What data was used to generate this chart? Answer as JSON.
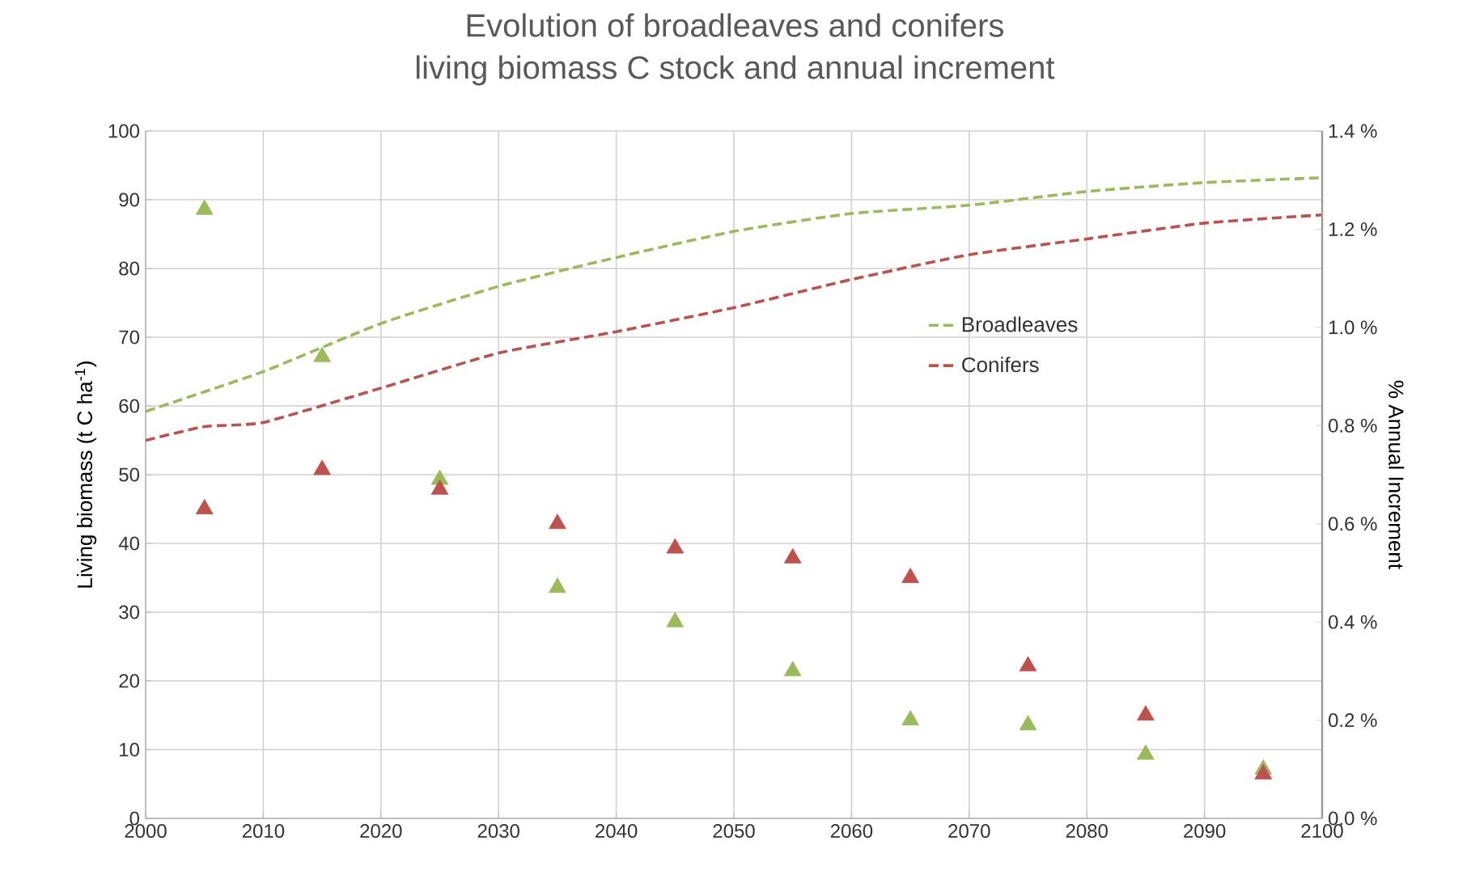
{
  "chart_data": {
    "type": "line",
    "title": "Evolution of broadleaves and conifers\nliving biomass C stock and annual increment",
    "ylabel": "Living biomass (t C ha$^{-1}$)",
    "y2label": "% Annual Increment",
    "xlim": [
      2000,
      2100
    ],
    "xticks": [
      2000,
      2010,
      2020,
      2030,
      2040,
      2050,
      2060,
      2070,
      2080,
      2090,
      2100
    ],
    "ylim": [
      0,
      100
    ],
    "yticks": [
      0,
      10,
      20,
      30,
      40,
      50,
      60,
      70,
      80,
      90,
      100
    ],
    "y2lim": [
      0,
      1.4
    ],
    "y2ticks": [
      {
        "value": 0,
        "label": "0.0 %"
      },
      {
        "value": 0.2,
        "label": "0.2 %"
      },
      {
        "value": 0.4,
        "label": "0.4 %"
      },
      {
        "value": 0.6,
        "label": "0.6 %"
      },
      {
        "value": 0.8,
        "label": "0.8 %"
      },
      {
        "value": 1.0,
        "label": "1.0 %"
      },
      {
        "value": 1.2,
        "label": "1.2 %"
      },
      {
        "value": 1.4,
        "label": "1.4 %"
      }
    ],
    "grid": true,
    "legend": "right",
    "line_style": "dashed",
    "series": [
      {
        "name": "Broadleaves",
        "color": "#9bbb59",
        "x": [
          2000,
          2010,
          2020,
          2030,
          2040,
          2050,
          2060,
          2070,
          2080,
          2090,
          2100
        ],
        "values": [
          59.2,
          65,
          72,
          77.4,
          81.6,
          85.4,
          88,
          89.2,
          91.2,
          92.5,
          93.2
        ]
      },
      {
        "name": "Conifers",
        "color": "#c0504d",
        "x": [
          2000,
          2005,
          2010,
          2020,
          2030,
          2040,
          2050,
          2060,
          2070,
          2080,
          2090,
          2100
        ],
        "values": [
          55,
          57,
          57.6,
          62.6,
          67.7,
          70.8,
          74.3,
          78.4,
          82,
          84.3,
          86.6,
          87.8
        ]
      },
      {
        "type": "scatter",
        "axis": "y2",
        "marker": "triangle",
        "color": "#9bbb59",
        "x": [
          2005,
          2015,
          2025,
          2035,
          2045,
          2055,
          2065,
          2075,
          2085,
          2095
        ],
        "values": [
          1.24,
          0.94,
          0.69,
          0.47,
          0.4,
          0.3,
          0.2,
          0.19,
          0.13,
          0.1
        ]
      },
      {
        "type": "scatter",
        "axis": "y2",
        "marker": "triangle",
        "color": "#c0504d",
        "x": [
          2005,
          2015,
          2025,
          2035,
          2045,
          2055,
          2065,
          2075,
          2085,
          2095
        ],
        "values": [
          0.63,
          0.71,
          0.67,
          0.6,
          0.55,
          0.53,
          0.49,
          0.31,
          0.21,
          0.09
        ]
      }
    ]
  }
}
